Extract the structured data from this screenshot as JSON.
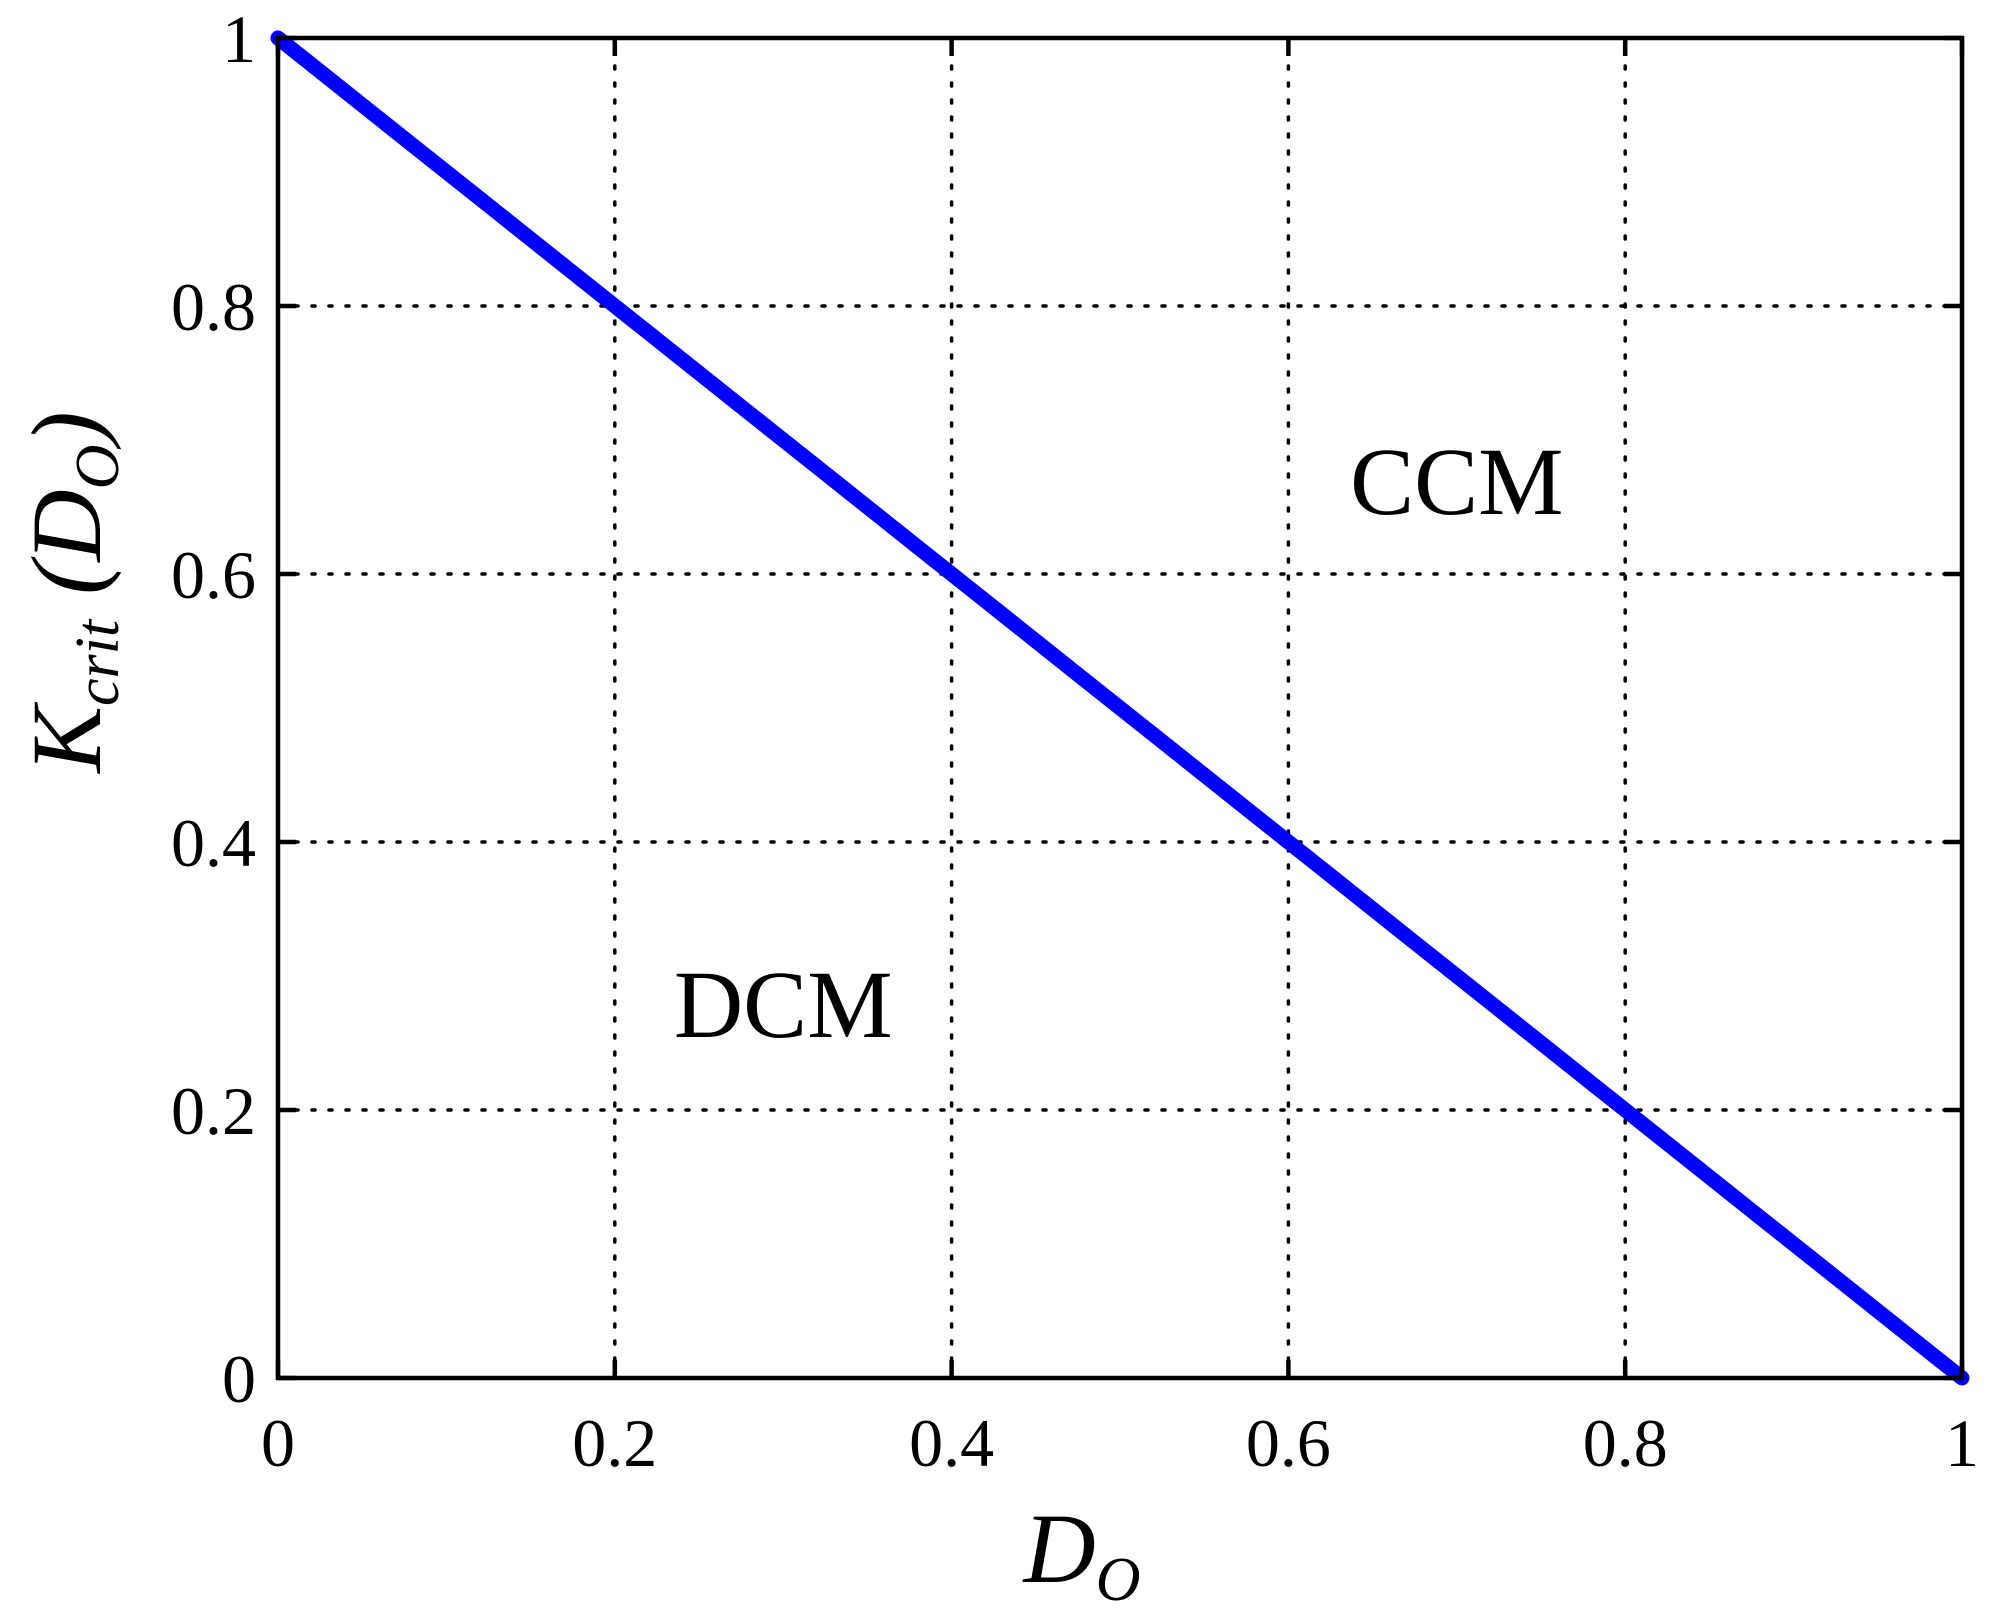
{
  "chart_data": {
    "type": "line",
    "title": "",
    "xlabel": {
      "main": "D",
      "sub": "O"
    },
    "ylabel": {
      "main": "K",
      "sub": "crit",
      "rest": "(D",
      "rest_sub": "O",
      "close": ")"
    },
    "xlim": [
      0,
      1
    ],
    "ylim": [
      0,
      1
    ],
    "x_ticks": [
      0,
      0.2,
      0.4,
      0.6,
      0.8,
      1
    ],
    "x_tick_labels": [
      "0",
      "0.2",
      "0.4",
      "0.6",
      "0.8",
      "1"
    ],
    "y_ticks": [
      0,
      0.2,
      0.4,
      0.6,
      0.8,
      1
    ],
    "y_tick_labels": [
      "0",
      "0.2",
      "0.4",
      "0.6",
      "0.8",
      "1"
    ],
    "grid": true,
    "grid_style": "dotted",
    "series": [
      {
        "color": "#0000ff",
        "x": [
          0,
          0.02,
          0.04,
          0.06,
          0.08,
          0.1,
          0.12,
          0.14,
          0.16,
          0.18,
          0.2,
          0.22,
          0.24,
          0.26,
          0.28,
          0.3,
          0.32,
          0.34,
          0.36,
          0.38,
          0.4,
          0.42,
          0.44,
          0.46,
          0.48,
          0.5,
          0.52,
          0.54,
          0.56,
          0.58,
          0.6,
          0.62,
          0.64,
          0.66,
          0.68,
          0.7,
          0.72,
          0.74,
          0.76,
          0.78,
          0.8,
          0.82,
          0.84,
          0.86,
          0.88,
          0.9,
          0.92,
          0.94,
          0.96,
          0.98,
          1
        ],
        "y": [
          1,
          0.98,
          0.96,
          0.94,
          0.92,
          0.9,
          0.88,
          0.86,
          0.84,
          0.82,
          0.8,
          0.78,
          0.76,
          0.74,
          0.72,
          0.7,
          0.68,
          0.66,
          0.64,
          0.62,
          0.6,
          0.58,
          0.56,
          0.54,
          0.52,
          0.5,
          0.48,
          0.46,
          0.44,
          0.42,
          0.4,
          0.38,
          0.36,
          0.34,
          0.32,
          0.3,
          0.28,
          0.26,
          0.24,
          0.22,
          0.2,
          0.18,
          0.16,
          0.14,
          0.12,
          0.1,
          0.08,
          0.06,
          0.04,
          0.02,
          0
        ]
      }
    ],
    "annotations": [
      {
        "text": "CCM",
        "x": 0.7,
        "y": 0.67
      },
      {
        "text": "DCM",
        "x": 0.3,
        "y": 0.28
      }
    ]
  }
}
